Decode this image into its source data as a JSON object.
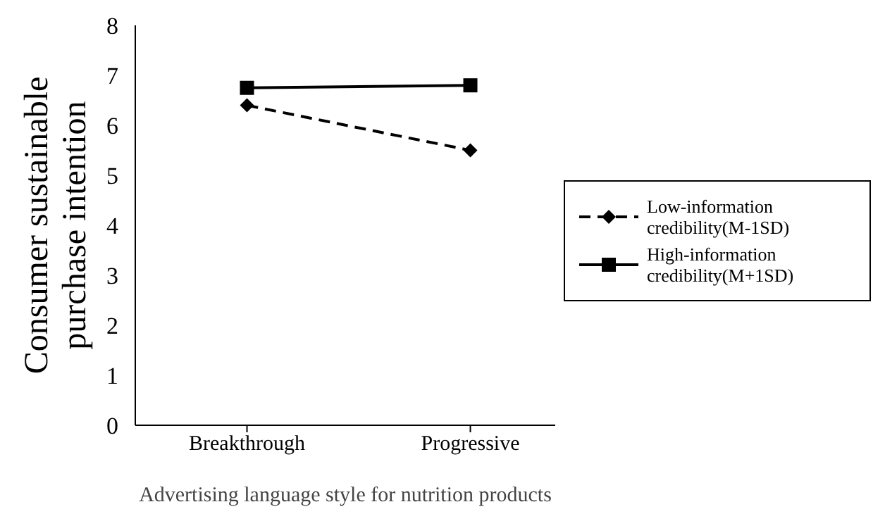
{
  "chart_data": {
    "type": "line",
    "xlabel": "Advertising language style for nutrition products",
    "ylabel": "Consumer sustainable purchase intention",
    "categories": [
      "Breakthrough",
      "Progressive"
    ],
    "series": [
      {
        "name": "Low-information credibility(M-1SD)",
        "color": "#000000",
        "values": [
          6.4,
          5.5
        ],
        "marker": "diamond",
        "line_style": "dashed"
      },
      {
        "name": "High-information credibility(M+1SD)",
        "color": "#000000",
        "values": [
          6.75,
          6.8
        ],
        "marker": "square",
        "line_style": "solid"
      }
    ],
    "ylim": [
      0,
      8
    ],
    "yticks": [
      0,
      1,
      2,
      3,
      4,
      5,
      6,
      7,
      8
    ],
    "grid": false,
    "legend": "right"
  }
}
